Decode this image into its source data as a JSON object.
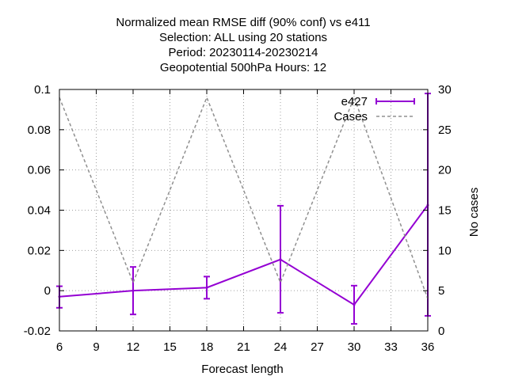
{
  "chart_data": {
    "type": "line",
    "title_lines": [
      "Normalized mean RMSE diff (90% conf) vs e411",
      "Selection: ALL using    20 stations",
      "Period: 20230114-20230214",
      "Geopotential 500hPa   Hours:  12"
    ],
    "xlabel": "Forecast length",
    "ylabel": "",
    "y2label": "No cases",
    "xlim": [
      6,
      36
    ],
    "ylim": [
      -0.02,
      0.1
    ],
    "y2lim": [
      0,
      30
    ],
    "x_ticks": [
      6,
      9,
      12,
      15,
      18,
      21,
      24,
      27,
      30,
      33,
      36
    ],
    "y_ticks": [
      -0.02,
      0,
      0.02,
      0.04,
      0.06,
      0.08,
      0.1
    ],
    "y_tick_labels": [
      "-0.02",
      "0",
      "0.02",
      "0.04",
      "0.06",
      "0.08",
      "0.1"
    ],
    "y2_ticks": [
      0,
      5,
      10,
      15,
      20,
      25,
      30
    ],
    "grid": true,
    "legend_position": "top-right",
    "series": [
      {
        "name": "e427",
        "axis": "y1",
        "color": "#9400d3",
        "style": "line+errorbars",
        "x": [
          6,
          12,
          18,
          24,
          30,
          36
        ],
        "y": [
          -0.003,
          0.0,
          0.0015,
          0.0155,
          -0.007,
          0.0425
        ],
        "err_low": [
          -0.0085,
          -0.0118,
          -0.004,
          -0.011,
          -0.0165,
          -0.0125
        ],
        "err_high": [
          0.0022,
          0.0118,
          0.007,
          0.0422,
          0.0025,
          0.098
        ]
      },
      {
        "name": "Cases",
        "axis": "y2",
        "color": "#909090",
        "style": "dashed",
        "x": [
          6,
          12,
          18,
          24,
          30,
          36
        ],
        "y": [
          29,
          6,
          29,
          6,
          29,
          4
        ]
      }
    ]
  }
}
